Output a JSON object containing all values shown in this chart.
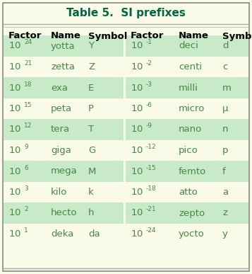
{
  "title": "Table 5.  SI prefixes",
  "title_color": "#006644",
  "bg_color": "#fafae8",
  "green_row_color": "#c8eac8",
  "border_color": "#888888",
  "header_text_color": "#000000",
  "data_text_color": "#448844",
  "left_rows": [
    {
      "exp": "24",
      "name": "yotta",
      "symbol": "Y"
    },
    {
      "exp": "21",
      "name": "zetta",
      "symbol": "Z"
    },
    {
      "exp": "18",
      "name": "exa",
      "symbol": "E"
    },
    {
      "exp": "15",
      "name": "peta",
      "symbol": "P"
    },
    {
      "exp": "12",
      "name": "tera",
      "symbol": "T"
    },
    {
      "exp": "9",
      "name": "giga",
      "symbol": "G"
    },
    {
      "exp": "6",
      "name": "mega",
      "symbol": "M"
    },
    {
      "exp": "3",
      "name": "kilo",
      "symbol": "k"
    },
    {
      "exp": "2",
      "name": "hecto",
      "symbol": "h"
    },
    {
      "exp": "1",
      "name": "deka",
      "symbol": "da"
    }
  ],
  "right_rows": [
    {
      "exp": "-1",
      "name": "deci",
      "symbol": "d"
    },
    {
      "exp": "-2",
      "name": "centi",
      "symbol": "c"
    },
    {
      "exp": "-3",
      "name": "milli",
      "symbol": "m"
    },
    {
      "exp": "-6",
      "name": "micro",
      "symbol": "μ"
    },
    {
      "exp": "-9",
      "name": "nano",
      "symbol": "n"
    },
    {
      "exp": "-12",
      "name": "pico",
      "symbol": "p"
    },
    {
      "exp": "-15",
      "name": "femto",
      "symbol": "f"
    },
    {
      "exp": "-18",
      "name": "atto",
      "symbol": "a"
    },
    {
      "exp": "-21",
      "name": "zepto",
      "symbol": "z"
    },
    {
      "exp": "-24",
      "name": "yocto",
      "symbol": "y"
    }
  ],
  "green_rows": [
    0,
    2,
    4,
    6,
    8
  ],
  "figsize": [
    3.57,
    3.87
  ],
  "dpi": 100
}
